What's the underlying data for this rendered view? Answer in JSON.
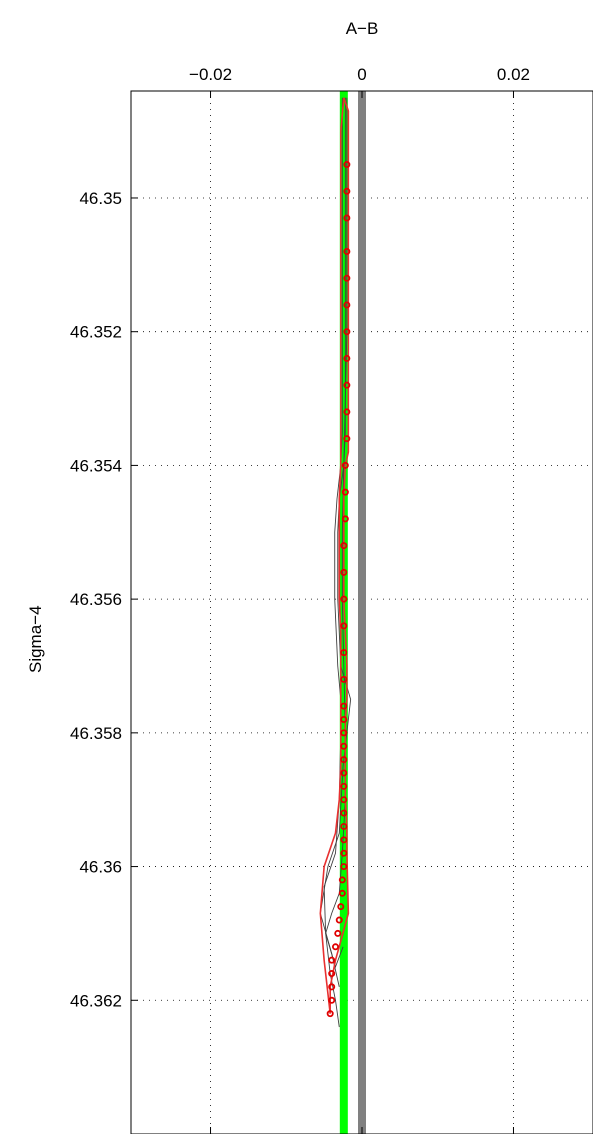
{
  "chart_data": {
    "type": "line",
    "title": "",
    "xlabel": "A−B",
    "ylabel": "Sigma−4",
    "xlim": [
      -0.0305,
      0.0305
    ],
    "ylim": [
      46.3484,
      46.364
    ],
    "y_reversed": true,
    "x_axis_position": "top",
    "grid": true,
    "x_ticks": [
      -0.02,
      0,
      0.02
    ],
    "x_tick_labels": [
      "−0.02",
      "0",
      "0.02"
    ],
    "y_ticks": [
      46.35,
      46.352,
      46.354,
      46.356,
      46.358,
      46.36,
      46.362
    ],
    "y_tick_labels": [
      "46.35",
      "46.352",
      "46.354",
      "46.356",
      "46.358",
      "46.36",
      "46.362"
    ],
    "colors": {
      "reference_gray": "#808080",
      "reference_green": "#00ff00",
      "envelope_line": "#e83030",
      "thin_lines": "#404040",
      "markers": "#e00000",
      "grid": "#000000"
    },
    "series": [
      {
        "role": "vertical-reference-gray",
        "x": [
          0,
          0
        ],
        "y": [
          46.3484,
          46.364
        ]
      },
      {
        "role": "vertical-reference-green",
        "x": [
          -0.0024,
          -0.0024
        ],
        "y": [
          46.3484,
          46.364
        ]
      },
      {
        "role": "markers",
        "x": [
          -0.002,
          -0.002,
          -0.002,
          -0.002,
          -0.002,
          -0.002,
          -0.002,
          -0.002,
          -0.002,
          -0.002,
          -0.002,
          -0.0022,
          -0.0022,
          -0.0022,
          -0.0024,
          -0.0024,
          -0.0024,
          -0.0024,
          -0.0024,
          -0.0024,
          -0.0024,
          -0.0024,
          -0.0024,
          -0.0024,
          -0.0024,
          -0.0024,
          -0.0024,
          -0.0024,
          -0.0024,
          -0.0024,
          -0.0024,
          -0.0024,
          -0.0024,
          -0.0026,
          -0.0026,
          -0.0028,
          -0.003,
          -0.0032,
          -0.0035,
          -0.004,
          -0.004,
          -0.004,
          -0.004,
          -0.0042
        ],
        "y": [
          46.3495,
          46.3499,
          46.3503,
          46.3508,
          46.3512,
          46.3516,
          46.352,
          46.3524,
          46.3528,
          46.3532,
          46.3536,
          46.354,
          46.3544,
          46.3548,
          46.3552,
          46.3556,
          46.356,
          46.3564,
          46.3568,
          46.3572,
          46.3576,
          46.3578,
          46.358,
          46.3582,
          46.3584,
          46.3586,
          46.3588,
          46.359,
          46.3592,
          46.3594,
          46.3596,
          46.3598,
          46.36,
          46.3602,
          46.3604,
          46.3606,
          46.3608,
          46.361,
          46.3612,
          46.3614,
          46.3616,
          46.3618,
          46.362,
          46.3622
        ]
      },
      {
        "role": "envelope-upper",
        "x": [
          -0.0024,
          -0.0018,
          -0.0018,
          -0.0018,
          -0.0018,
          -0.0018,
          -0.0018,
          -0.0018,
          -0.0018,
          -0.0018,
          -0.0018,
          -0.0018,
          -0.0018,
          -0.0022,
          -0.0024,
          -0.0024,
          -0.0024,
          -0.0024,
          -0.0022,
          -0.002,
          -0.002,
          -0.0022,
          -0.0022,
          -0.0022,
          -0.0022,
          -0.002,
          -0.002,
          -0.0018,
          -0.0035,
          -0.0042,
          -0.0042
        ],
        "y": [
          46.3485,
          46.3487,
          46.349,
          46.3495,
          46.35,
          46.3505,
          46.351,
          46.3515,
          46.352,
          46.3525,
          46.353,
          46.3535,
          46.3538,
          46.354,
          46.3545,
          46.355,
          46.3555,
          46.356,
          46.3565,
          46.357,
          46.3575,
          46.3578,
          46.3582,
          46.3586,
          46.359,
          46.3594,
          46.3598,
          46.3607,
          46.3614,
          46.3618,
          46.3622
        ]
      },
      {
        "role": "envelope-lower",
        "x": [
          -0.0024,
          -0.0028,
          -0.0028,
          -0.0028,
          -0.0028,
          -0.0028,
          -0.0028,
          -0.0028,
          -0.0028,
          -0.0028,
          -0.0028,
          -0.0028,
          -0.003,
          -0.003,
          -0.003,
          -0.003,
          -0.0028,
          -0.0028,
          -0.0028,
          -0.0028,
          -0.0028,
          -0.003,
          -0.0035,
          -0.005,
          -0.0055,
          -0.005,
          -0.0042
        ],
        "y": [
          46.3485,
          46.349,
          46.3495,
          46.35,
          46.3505,
          46.351,
          46.3515,
          46.352,
          46.3525,
          46.353,
          46.3535,
          46.354,
          46.3545,
          46.355,
          46.3555,
          46.356,
          46.3565,
          46.357,
          46.3575,
          46.358,
          46.3585,
          46.359,
          46.3595,
          46.36,
          46.3607,
          46.3614,
          46.3622
        ]
      },
      {
        "role": "thin-line-1",
        "x": [
          -0.0022,
          -0.0022,
          -0.0022,
          -0.0024,
          -0.003,
          -0.0032,
          -0.0032,
          -0.0028,
          -0.0015,
          -0.0018,
          -0.0025,
          -0.003,
          -0.0045,
          -0.0055,
          -0.004,
          -0.003
        ],
        "y": [
          46.3485,
          46.351,
          46.3535,
          46.354,
          46.3545,
          46.355,
          46.356,
          46.357,
          46.3575,
          46.3578,
          46.3585,
          46.3595,
          46.36,
          46.3607,
          46.3613,
          46.3618
        ]
      },
      {
        "role": "thin-line-2",
        "x": [
          -0.0026,
          -0.0026,
          -0.0026,
          -0.0028,
          -0.0033,
          -0.0036,
          -0.0036,
          -0.0032,
          -0.0028,
          -0.0028,
          -0.003,
          -0.0035,
          -0.005,
          -0.0048,
          -0.0035,
          -0.0025
        ],
        "y": [
          46.3485,
          46.351,
          46.3535,
          46.354,
          46.3545,
          46.355,
          46.356,
          46.357,
          46.3575,
          46.358,
          46.359,
          46.3598,
          46.3603,
          46.361,
          46.3615,
          46.3612
        ]
      },
      {
        "role": "thin-line-3",
        "x": [
          -0.002,
          -0.002,
          -0.0024,
          -0.0026,
          -0.0026,
          -0.0024,
          -0.0022,
          -0.0022,
          -0.0026,
          -0.003,
          -0.004,
          -0.0048,
          -0.0042,
          -0.0035,
          -0.003
        ],
        "y": [
          46.3485,
          46.352,
          46.354,
          46.355,
          46.356,
          46.357,
          46.358,
          46.359,
          46.3598,
          46.3604,
          46.3607,
          46.361,
          46.3616,
          46.362,
          46.3624
        ]
      }
    ]
  }
}
